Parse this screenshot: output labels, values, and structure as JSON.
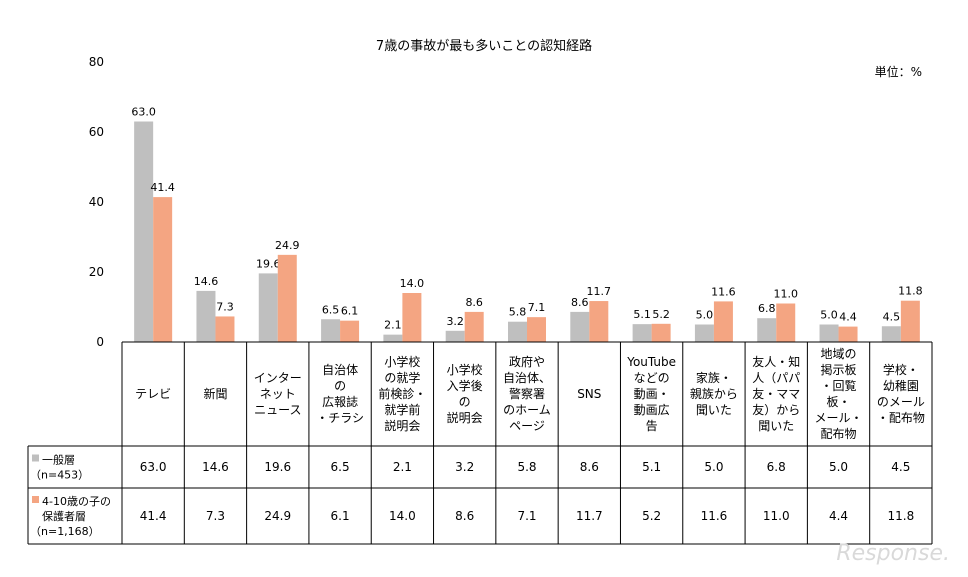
{
  "chart_data": {
    "type": "bar",
    "title": "7歳の事故が最も多いことの認知経路",
    "unit_label": "単位：%",
    "ylim": [
      0,
      80
    ],
    "yticks": [
      "0",
      "20",
      "40",
      "60",
      "80"
    ],
    "categories": [
      "テレビ",
      "新聞",
      "インター\nネット\nニュース",
      "自治体\nの\n広報誌\n・チラシ",
      "小学校\nの就学\n前検診・\n就学前\n説明会",
      "小学校\n入学後\nの\n説明会",
      "政府や\n自治体、\n警察署\nのホーム\nページ",
      "SNS",
      "YouTube\nなどの\n動画・\n動画広\n告",
      "家族・\n親族から\n聞いた",
      "友人・知\n人（パパ\n友・ママ\n友）から\n聞いた",
      "地域の\n掲示板\n・回覧\n板・\nメール・\n配布物",
      "学校・\n幼稚園\nのメール\n・配布物"
    ],
    "series": [
      {
        "name": "一般層",
        "sub": "（n=453）",
        "color": "#bfbfbf",
        "values": [
          63.0,
          14.6,
          19.6,
          6.5,
          2.1,
          3.2,
          5.8,
          8.6,
          5.1,
          5.0,
          6.8,
          5.0,
          4.5
        ],
        "labels": [
          "63.0",
          "14.6",
          "19.6",
          "6.5",
          "2.1",
          "3.2",
          "5.8",
          "8.6",
          "5.1",
          "5.0",
          "6.8",
          "5.0",
          "4.5"
        ]
      },
      {
        "name": "4-10歳の子の\n保護者層",
        "sub": "（n=1,168）",
        "color": "#f4a582",
        "values": [
          41.4,
          7.3,
          24.9,
          6.1,
          14.0,
          8.6,
          7.1,
          11.7,
          5.2,
          11.6,
          11.0,
          4.4,
          11.8
        ],
        "labels": [
          "41.4",
          "7.3",
          "24.9",
          "6.1",
          "14.0",
          "8.6",
          "7.1",
          "11.7",
          "5.2",
          "11.6",
          "11.0",
          "4.4",
          "11.8"
        ]
      }
    ],
    "grid": false,
    "legend": "table-left"
  },
  "watermark": "Response."
}
